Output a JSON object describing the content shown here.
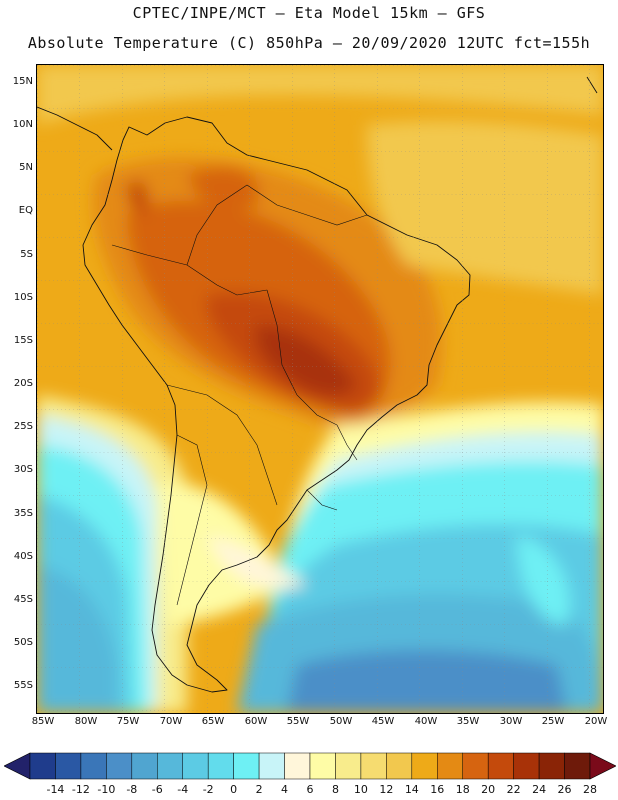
{
  "header": {
    "line1": "CPTEC/INPE/MCT –  Eta Model 15km – GFS",
    "line2": "Absolute Temperature (C) 850hPa – 20/09/2020 12UTC fct=155h"
  },
  "map": {
    "lat_labels": [
      "15N",
      "10N",
      "5N",
      "EQ",
      "5S",
      "10S",
      "15S",
      "20S",
      "25S",
      "30S",
      "35S",
      "40S",
      "45S",
      "50S",
      "55S"
    ],
    "lon_labels": [
      "85W",
      "80W",
      "75W",
      "70W",
      "65W",
      "60W",
      "55W",
      "50W",
      "45W",
      "40W",
      "35W",
      "30W",
      "25W",
      "20W"
    ]
  },
  "legend": {
    "levels": [
      "-14",
      "-12",
      "-10",
      "-8",
      "-6",
      "-4",
      "-2",
      "0",
      "2",
      "4",
      "6",
      "8",
      "10",
      "12",
      "14",
      "16",
      "18",
      "20",
      "22",
      "24",
      "26",
      "28"
    ],
    "colors": [
      "#1f3c8c",
      "#2a58a4",
      "#3a76b8",
      "#4b8fc8",
      "#50a5d0",
      "#56b8da",
      "#5ccbe4",
      "#62dcec",
      "#6ef0f4",
      "#c8f4f8",
      "#fff6da",
      "#fefca6",
      "#f8ec8c",
      "#f6dc70",
      "#f2c84e",
      "#eeaa18",
      "#e48a14",
      "#d66410",
      "#c44a0c",
      "#a83208",
      "#8a2406",
      "#6e1a0a"
    ],
    "low_arrow_color": "#22226a",
    "high_arrow_color": "#7a0a1a"
  }
}
